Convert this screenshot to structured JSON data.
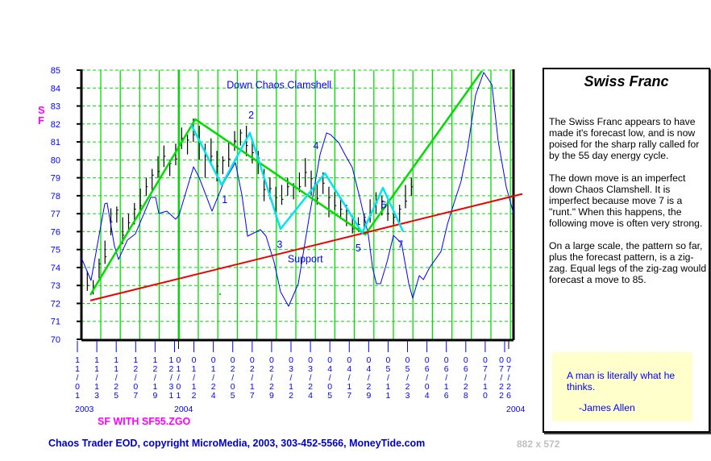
{
  "chart_data": {
    "type": "line",
    "title": "Down Chaos Clamshell",
    "symbol_label": [
      "S",
      "F"
    ],
    "subtitle": "SF WITH SF55.ZGO",
    "ylim": [
      70,
      85
    ],
    "yticks": [
      85,
      84,
      83,
      82,
      81,
      80,
      79,
      78,
      77,
      76,
      75,
      74,
      73,
      72,
      71,
      70
    ],
    "xlim": [
      0,
      220
    ],
    "x_tick_labels": [
      "11/01",
      "11/13",
      "11/25",
      "12/07",
      "12/19",
      "12/31",
      "01/12",
      "01/24",
      "02/05",
      "02/17",
      "02/29",
      "03/12",
      "03/24",
      "04/05",
      "04/17",
      "04/29",
      "05/11",
      "05/23",
      "06/04",
      "06/16",
      "06/28",
      "07/10",
      "07/22"
    ],
    "x_tick_overlaps": [
      {
        "label": "01/01",
        "after": "12/31"
      },
      {
        "label": "07/26",
        "after": "07/22"
      }
    ],
    "year_labels": [
      {
        "label": "2003",
        "x": 0
      },
      {
        "label": "2004",
        "x": 47
      },
      {
        "label": "2004",
        "x": 216
      }
    ],
    "grid": true,
    "price_bars": {
      "start_x": 3,
      "step": 3,
      "high_low": [
        [
          73.8,
          72.7
        ],
        [
          73.3,
          72.5
        ],
        [
          74.5,
          73.4
        ],
        [
          75.5,
          74.2
        ],
        [
          77.3,
          75.8
        ],
        [
          77.4,
          76.5
        ],
        [
          76.8,
          75.3
        ],
        [
          77.0,
          76.0
        ],
        [
          77.6,
          76.4
        ],
        [
          78.4,
          77.0
        ],
        [
          79.0,
          78.0
        ],
        [
          79.5,
          78.3
        ],
        [
          80.2,
          79.0
        ],
        [
          80.8,
          79.6
        ],
        [
          80.0,
          79.1
        ],
        [
          80.9,
          79.7
        ],
        [
          81.8,
          80.6
        ],
        [
          81.4,
          80.3
        ],
        [
          82.3,
          81.0
        ],
        [
          81.9,
          80.0
        ],
        [
          80.9,
          79.0
        ],
        [
          81.2,
          79.7
        ],
        [
          80.5,
          78.8
        ],
        [
          80.2,
          79.2
        ],
        [
          81.0,
          79.6
        ],
        [
          81.6,
          80.5
        ],
        [
          81.7,
          80.8
        ],
        [
          81.9,
          80.2
        ],
        [
          81.0,
          79.8
        ],
        [
          80.5,
          79.2
        ],
        [
          79.5,
          77.7
        ],
        [
          79.0,
          77.8
        ],
        [
          78.5,
          76.8
        ],
        [
          78.6,
          77.5
        ],
        [
          79.0,
          78.0
        ],
        [
          78.7,
          77.8
        ],
        [
          79.3,
          78.2
        ],
        [
          80.1,
          78.5
        ],
        [
          79.4,
          78.0
        ],
        [
          78.7,
          77.5
        ],
        [
          79.3,
          78.1
        ],
        [
          78.5,
          76.8
        ],
        [
          78.2,
          77.2
        ],
        [
          77.8,
          76.7
        ],
        [
          77.5,
          76.3
        ],
        [
          76.9,
          75.9
        ],
        [
          76.8,
          76.0
        ],
        [
          77.0,
          76.1
        ],
        [
          77.8,
          76.5
        ],
        [
          78.2,
          77.0
        ],
        [
          78.0,
          76.9
        ],
        [
          77.9,
          76.6
        ],
        [
          77.2,
          76.4
        ],
        [
          77.5,
          76.5
        ],
        [
          78.6,
          77.3
        ],
        [
          79.0,
          78.0
        ]
      ]
    },
    "series": [
      {
        "name": "SF55 forecast",
        "color": "#0000ff",
        "points": [
          [
            0,
            74.54
          ],
          [
            4.9,
            73.28
          ],
          [
            9,
            75.79
          ],
          [
            11.9,
            77.55
          ],
          [
            13.1,
            77.59
          ],
          [
            16.8,
            75.21
          ],
          [
            18.9,
            74.45
          ],
          [
            23.4,
            75.53
          ],
          [
            27.5,
            75.88
          ],
          [
            35.3,
            77.91
          ],
          [
            37.8,
            77.91
          ],
          [
            39.4,
            77.01
          ],
          [
            43.5,
            77.14
          ],
          [
            48,
            76.69
          ],
          [
            49.7,
            76.92
          ],
          [
            57.1,
            79.61
          ],
          [
            59.9,
            79.03
          ],
          [
            66.5,
            77.14
          ],
          [
            72.2,
            78.67
          ],
          [
            78.4,
            79.84
          ],
          [
            81.7,
            78.04
          ],
          [
            84.6,
            75.75
          ],
          [
            91.1,
            76.11
          ],
          [
            94,
            75.75
          ],
          [
            98.1,
            74.31
          ],
          [
            101.4,
            72.65
          ],
          [
            105.5,
            71.84
          ],
          [
            110.4,
            73.1
          ],
          [
            115.8,
            76.69
          ],
          [
            121.5,
            80.29
          ],
          [
            124.8,
            81.5
          ],
          [
            126.8,
            81.41
          ],
          [
            131,
            80.96
          ],
          [
            134.2,
            80.29
          ],
          [
            137.9,
            79.57
          ],
          [
            142,
            77.77
          ],
          [
            146.1,
            75.79
          ],
          [
            148.2,
            74.0
          ],
          [
            150.2,
            73.1
          ],
          [
            152.3,
            73.1
          ],
          [
            155.6,
            74.31
          ],
          [
            158.9,
            75.79
          ],
          [
            163,
            75.35
          ],
          [
            166.7,
            73.1
          ],
          [
            168.7,
            72.29
          ],
          [
            172,
            73.55
          ],
          [
            174.1,
            73.33
          ],
          [
            177.3,
            74.0
          ],
          [
            183.1,
            74.9
          ],
          [
            186.4,
            76.42
          ],
          [
            189.7,
            77.59
          ],
          [
            193.3,
            78.8
          ],
          [
            196.6,
            80.6
          ],
          [
            200.7,
            83.61
          ],
          [
            204.8,
            84.87
          ],
          [
            209,
            84.19
          ],
          [
            212.2,
            81.05
          ],
          [
            216.3,
            78.49
          ],
          [
            220,
            77.01
          ]
        ]
      },
      {
        "name": "Zig-zag",
        "color": "#00dd00",
        "points": [
          [
            4.5,
            72.47
          ],
          [
            58,
            82.26
          ],
          [
            144.5,
            75.84
          ],
          [
            204,
            84.96
          ]
        ]
      },
      {
        "name": "Support",
        "color": "#ee0000",
        "points": [
          [
            4.5,
            72.16
          ],
          [
            224.5,
            78.1
          ]
        ]
      },
      {
        "name": "Clamshell",
        "color": "#00e5ee",
        "points": [
          [
            56,
            81.95
          ],
          [
            71.4,
            78.6
          ],
          [
            85.8,
            81.5
          ],
          [
            101.4,
            76.15
          ],
          [
            124,
            79.25
          ],
          [
            143,
            75.93
          ],
          [
            153.5,
            78.44
          ],
          [
            163.8,
            76.0
          ]
        ]
      }
    ],
    "annotations": [
      {
        "text": "Down Chaos Clamshell",
        "x": 74,
        "y": 84.0
      },
      {
        "text": "1",
        "x": 71.5,
        "y": 77.6
      },
      {
        "text": "2",
        "x": 85,
        "y": 82.3
      },
      {
        "text": "3",
        "x": 99.5,
        "y": 75.1
      },
      {
        "text": "4",
        "x": 118,
        "y": 80.6
      },
      {
        "text": "5",
        "x": 139.5,
        "y": 74.9
      },
      {
        "text": "6",
        "x": 152.5,
        "y": 77.3
      },
      {
        "text": "7",
        "x": 161,
        "y": 75.1
      },
      {
        "text": "Support",
        "x": 105,
        "y": 74.3
      }
    ]
  },
  "panel": {
    "title": "Swiss Franc",
    "paragraphs": [
      "The Swiss Franc appears to have made it's forecast low, and is now poised for the sharp rally called for by the 55 day energy cycle.",
      "The down move is an imperfect down Chaos Clamshell. It is imperfect because move 7 is a \"runt.\" When this happens, the following move is often very strong.",
      "On a large scale, the pattern so far, plus the forecast pattern, is a zig-zag. Equal legs of the zig-zag would forecast a move to 85."
    ],
    "quote": "A man is literally what he thinks.",
    "quote_author": "-James Allen"
  },
  "footer": "Chaos Trader EOD, copyright MicroMedia, 2003, 303-452-5566, MoneyTide.com",
  "dimensions": "882 x 572"
}
